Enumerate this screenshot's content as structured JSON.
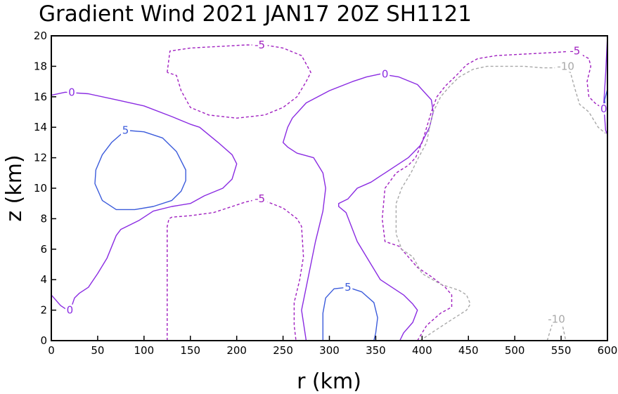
{
  "chart_data": {
    "type": "contour",
    "title": "Gradient Wind 2021 JAN17 20Z   SH1121",
    "xlabel": "r (km)",
    "ylabel": "z (km)",
    "xlim": [
      0,
      600
    ],
    "ylim": [
      0,
      20
    ],
    "xticks": [
      "0",
      "50",
      "100",
      "150",
      "200",
      "250",
      "300",
      "350",
      "400",
      "450",
      "500",
      "550",
      "600"
    ],
    "yticks": [
      "0",
      "2",
      "4",
      "6",
      "8",
      "10",
      "12",
      "14",
      "16",
      "18",
      "20"
    ],
    "grid": false,
    "colors": {
      "positive": "#3b5bdb",
      "zero": "#8a2be2",
      "neg5": "#a020c0",
      "neg10": "#a8a8a8"
    },
    "contours": [
      {
        "level": 0,
        "label": "0",
        "style": "solid",
        "color": "#8a2be2",
        "points": [
          [
            0,
            16.1
          ],
          [
            15,
            16.3
          ],
          [
            40,
            16.2
          ],
          [
            70,
            15.8
          ],
          [
            100,
            15.4
          ],
          [
            130,
            14.7
          ],
          [
            150,
            14.2
          ],
          [
            160,
            14
          ],
          [
            180,
            13
          ],
          [
            195,
            12.2
          ],
          [
            200,
            11.6
          ],
          [
            195,
            10.6
          ],
          [
            185,
            10
          ],
          [
            165,
            9.5
          ],
          [
            150,
            9
          ],
          [
            130,
            8.8
          ],
          [
            110,
            8.5
          ],
          [
            95,
            7.9
          ],
          [
            75,
            7.3
          ],
          [
            70,
            6.9
          ],
          [
            60,
            5.4
          ],
          [
            50,
            4.4
          ],
          [
            40,
            3.5
          ],
          [
            30,
            3.1
          ],
          [
            25,
            2.8
          ],
          [
            20,
            1.9
          ]
        ]
      },
      {
        "level": 0,
        "label": "0",
        "style": "solid",
        "color": "#8a2be2",
        "points": [
          [
            0,
            3
          ],
          [
            10,
            2.3
          ],
          [
            20,
            1.9
          ]
        ]
      },
      {
        "level": 0,
        "label": "0",
        "style": "solid",
        "color": "#8a2be2",
        "points": [
          [
            275,
            0
          ],
          [
            270,
            2
          ],
          [
            275,
            3.5
          ],
          [
            280,
            5
          ],
          [
            285,
            6.5
          ],
          [
            293,
            8.5
          ],
          [
            296,
            10
          ],
          [
            293,
            11
          ],
          [
            283,
            12
          ],
          [
            265,
            12.3
          ],
          [
            255,
            12.7
          ],
          [
            250,
            13
          ],
          [
            255,
            14
          ],
          [
            260,
            14.6
          ],
          [
            275,
            15.6
          ],
          [
            300,
            16.4
          ],
          [
            325,
            17
          ],
          [
            340,
            17.3
          ],
          [
            355,
            17.5
          ],
          [
            375,
            17.3
          ],
          [
            395,
            16.8
          ],
          [
            410,
            15.8
          ],
          [
            412,
            15
          ],
          [
            408,
            14
          ],
          [
            398,
            12.8
          ],
          [
            385,
            12
          ],
          [
            360,
            11
          ],
          [
            355,
            10.8
          ],
          [
            345,
            10.4
          ],
          [
            330,
            10
          ],
          [
            320,
            9.3
          ],
          [
            310,
            9
          ],
          [
            310,
            8.8
          ],
          [
            318,
            8.4
          ],
          [
            330,
            6.5
          ],
          [
            345,
            5
          ],
          [
            355,
            4
          ],
          [
            380,
            3
          ],
          [
            390,
            2.4
          ],
          [
            395,
            2
          ],
          [
            390,
            1.2
          ],
          [
            380,
            0.5
          ],
          [
            376,
            0
          ]
        ]
      },
      {
        "level": 0,
        "label": "0",
        "style": "solid",
        "color": "#8a2be2",
        "points": [
          [
            600,
            20
          ],
          [
            598,
            17.5
          ],
          [
            596,
            15.5
          ],
          [
            598,
            13.8
          ],
          [
            600,
            13.5
          ]
        ]
      },
      {
        "level": 5,
        "label": "5",
        "style": "solid",
        "color": "#3b5bdb",
        "points": [
          [
            80,
            13.8
          ],
          [
            100,
            13.7
          ],
          [
            120,
            13.3
          ],
          [
            135,
            12.4
          ],
          [
            145,
            11.2
          ],
          [
            145,
            10.5
          ],
          [
            140,
            9.8
          ],
          [
            130,
            9.2
          ],
          [
            110,
            8.8
          ],
          [
            90,
            8.6
          ],
          [
            70,
            8.6
          ],
          [
            55,
            9.2
          ],
          [
            47,
            10.3
          ],
          [
            48,
            11.2
          ],
          [
            55,
            12.2
          ],
          [
            65,
            13
          ],
          [
            80,
            13.8
          ]
        ]
      },
      {
        "level": 5,
        "label": "5",
        "style": "solid",
        "color": "#3b5bdb",
        "points": [
          [
            293,
            0
          ],
          [
            293,
            1.8
          ],
          [
            296,
            2.8
          ],
          [
            305,
            3.4
          ],
          [
            320,
            3.5
          ],
          [
            335,
            3.2
          ],
          [
            348,
            2.5
          ],
          [
            352,
            1.5
          ],
          [
            350,
            0.5
          ],
          [
            348,
            0
          ]
        ]
      },
      {
        "level": -5,
        "label": "-5",
        "style": "dashed",
        "color": "#a020c0",
        "points": [
          [
            125,
            0
          ],
          [
            125,
            4
          ],
          [
            125,
            7.5
          ],
          [
            127,
            8
          ],
          [
            130,
            8.1
          ],
          [
            150,
            8.2
          ],
          [
            175,
            8.4
          ],
          [
            195,
            8.8
          ],
          [
            210,
            9.1
          ],
          [
            225,
            9.3
          ],
          [
            250,
            8.7
          ],
          [
            265,
            8
          ],
          [
            270,
            7.5
          ],
          [
            272,
            5.5
          ],
          [
            268,
            4
          ],
          [
            262,
            2.5
          ],
          [
            262,
            1
          ],
          [
            264,
            0
          ]
        ]
      },
      {
        "level": -5,
        "label": "-5",
        "style": "dashed",
        "color": "#a020c0",
        "points": [
          [
            125,
            17.6
          ],
          [
            128,
            19
          ],
          [
            150,
            19.2
          ],
          [
            180,
            19.3
          ],
          [
            210,
            19.4
          ],
          [
            230,
            19.4
          ],
          [
            250,
            19.2
          ],
          [
            270,
            18.7
          ],
          [
            280,
            17.6
          ],
          [
            275,
            17
          ],
          [
            265,
            16
          ],
          [
            250,
            15.3
          ],
          [
            230,
            14.8
          ],
          [
            200,
            14.6
          ],
          [
            170,
            14.8
          ],
          [
            150,
            15.3
          ],
          [
            140,
            16.4
          ],
          [
            135,
            17.4
          ],
          [
            125,
            17.6
          ]
        ]
      },
      {
        "level": -5,
        "label": "-5",
        "style": "dashed",
        "color": "#a020c0",
        "points": [
          [
            395,
            0
          ],
          [
            405,
            1
          ],
          [
            420,
            1.8
          ],
          [
            432,
            2.2
          ],
          [
            432,
            3
          ],
          [
            425,
            3.5
          ],
          [
            410,
            4.2
          ],
          [
            395,
            4.8
          ],
          [
            385,
            5.5
          ],
          [
            375,
            6.2
          ],
          [
            360,
            6.5
          ],
          [
            357,
            8
          ],
          [
            360,
            10
          ],
          [
            372,
            11
          ],
          [
            385,
            11.5
          ],
          [
            393,
            12
          ],
          [
            400,
            13
          ],
          [
            405,
            14
          ],
          [
            410,
            15
          ],
          [
            416,
            16
          ],
          [
            425,
            16.7
          ],
          [
            437,
            17.4
          ],
          [
            448,
            18.1
          ],
          [
            460,
            18.5
          ],
          [
            480,
            18.7
          ],
          [
            510,
            18.8
          ],
          [
            540,
            18.9
          ],
          [
            565,
            19
          ],
          [
            580,
            18.5
          ],
          [
            582,
            18
          ],
          [
            578,
            17
          ],
          [
            580,
            16
          ],
          [
            588,
            15.5
          ],
          [
            595,
            15.3
          ],
          [
            598,
            15
          ]
        ]
      },
      {
        "level": -10,
        "label": "-10",
        "style": "dashed",
        "color": "#a8a8a8",
        "points": [
          [
            398,
            0
          ],
          [
            410,
            0.5
          ],
          [
            430,
            1.3
          ],
          [
            448,
            2
          ],
          [
            452,
            2.4
          ],
          [
            448,
            3
          ],
          [
            440,
            3.3
          ],
          [
            420,
            3.7
          ],
          [
            400,
            4.4
          ],
          [
            390,
            5.5
          ],
          [
            378,
            6
          ],
          [
            372,
            7
          ],
          [
            372,
            9
          ],
          [
            378,
            10
          ],
          [
            388,
            11
          ],
          [
            396,
            12
          ],
          [
            405,
            13
          ],
          [
            408,
            14
          ],
          [
            412,
            15
          ],
          [
            420,
            16
          ],
          [
            430,
            16.7
          ],
          [
            440,
            17.3
          ],
          [
            455,
            17.8
          ],
          [
            470,
            18
          ],
          [
            490,
            18
          ],
          [
            510,
            18
          ],
          [
            530,
            17.9
          ],
          [
            550,
            17.9
          ],
          [
            560,
            17.6
          ],
          [
            565,
            16.5
          ],
          [
            570,
            15.5
          ],
          [
            580,
            15
          ],
          [
            585,
            14.5
          ],
          [
            590,
            14
          ],
          [
            598,
            13.6
          ]
        ]
      },
      {
        "level": -10,
        "label": "-10",
        "style": "dashed",
        "color": "#a8a8a8",
        "points": [
          [
            535,
            0
          ],
          [
            540,
            1
          ],
          [
            545,
            1.6
          ],
          [
            550,
            1.4
          ],
          [
            553,
            0.6
          ],
          [
            555,
            0
          ]
        ]
      },
      {
        "level": 5,
        "label": "5",
        "style": "solid",
        "color": "#3b5bdb",
        "points": [
          [
            600,
            16.5
          ],
          [
            597,
            15.8
          ],
          [
            598,
            15
          ],
          [
            600,
            14.8
          ]
        ]
      }
    ],
    "labels": [
      {
        "text": "0",
        "x": 22,
        "y": 16.3,
        "color": "#8a2be2"
      },
      {
        "text": "0",
        "x": 20,
        "y": 2.0,
        "color": "#8a2be2"
      },
      {
        "text": "0",
        "x": 360,
        "y": 17.5,
        "color": "#8a2be2"
      },
      {
        "text": "0",
        "x": 596,
        "y": 15.2,
        "color": "#8a2be2"
      },
      {
        "text": "5",
        "x": 80,
        "y": 13.8,
        "color": "#3b5bdb"
      },
      {
        "text": "5",
        "x": 320,
        "y": 3.5,
        "color": "#3b5bdb"
      },
      {
        "text": "-5",
        "x": 225,
        "y": 19.4,
        "color": "#a020c0"
      },
      {
        "text": "-5",
        "x": 225,
        "y": 9.3,
        "color": "#a020c0"
      },
      {
        "text": "-5",
        "x": 565,
        "y": 19.0,
        "color": "#a020c0"
      },
      {
        "text": "-10",
        "x": 555,
        "y": 18.0,
        "color": "#a8a8a8"
      },
      {
        "text": "-10",
        "x": 545,
        "y": 1.4,
        "color": "#a8a8a8"
      }
    ]
  }
}
